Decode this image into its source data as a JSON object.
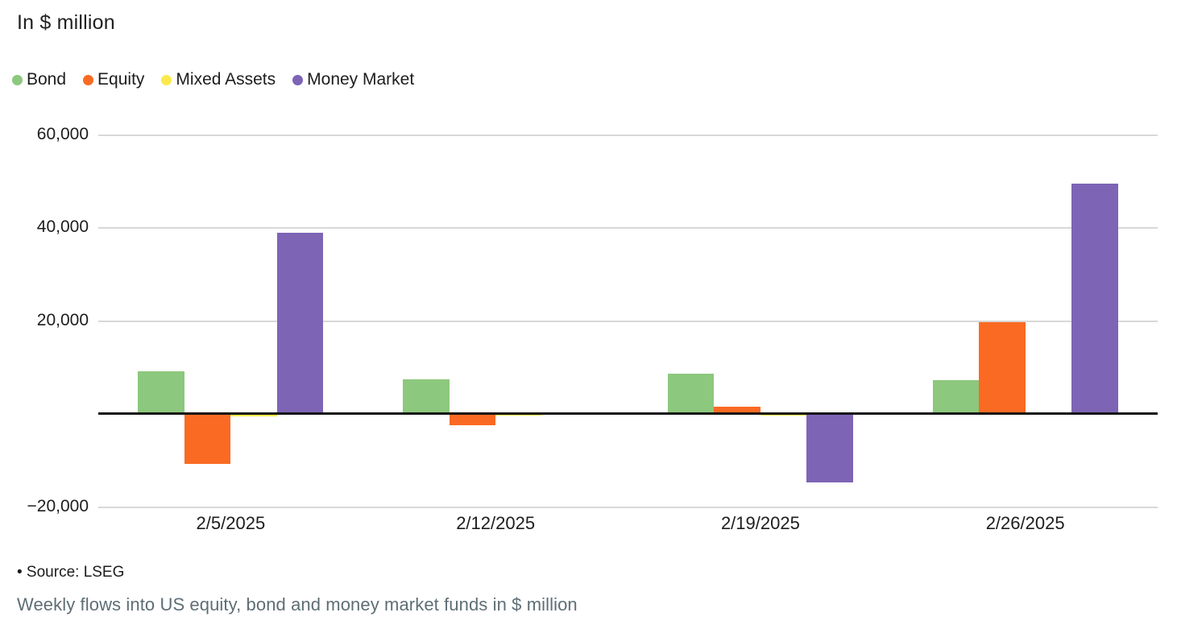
{
  "title": "In $ million",
  "source_line": "• Source: LSEG",
  "caption": "Weekly flows into US equity, bond and money market funds in $ million",
  "colors": {
    "background": "#ffffff",
    "gridline": "#d8d8d8",
    "zero_axis": "#141414",
    "text": "#1d1d1d",
    "caption_text": "#5e6e75"
  },
  "chart_data": {
    "type": "bar",
    "title": "In $ million",
    "xlabel": "",
    "ylabel": "",
    "categories": [
      "2/5/2025",
      "2/12/2025",
      "2/19/2025",
      "2/26/2025"
    ],
    "series": [
      {
        "name": "Bond",
        "color": "#8cc87d",
        "values": [
          9100,
          7400,
          8600,
          7300
        ]
      },
      {
        "name": "Equity",
        "color": "#fa6a23",
        "values": [
          -10800,
          -2400,
          1500,
          19700
        ]
      },
      {
        "name": "Mixed Assets",
        "color": "#fce94b",
        "values": [
          -600,
          -300,
          -250,
          0
        ]
      },
      {
        "name": "Money Market",
        "color": "#7d64b5",
        "values": [
          39000,
          0,
          -14700,
          49500
        ]
      }
    ],
    "ylim": [
      -20000,
      60000
    ],
    "yticks": [
      60000,
      40000,
      20000,
      -20000
    ],
    "ytick_labels": [
      "60,000",
      "40,000",
      "20,000",
      "−20,000"
    ],
    "grid": true,
    "legend_position": "top-left"
  }
}
